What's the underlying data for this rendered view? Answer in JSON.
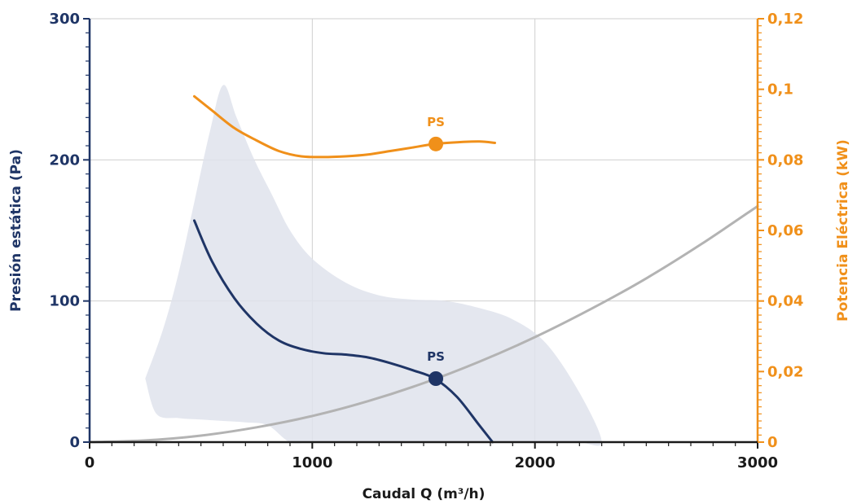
{
  "chart_data": {
    "type": "line",
    "xlabel": "Caudal Q (m³/h)",
    "ylabel": "Presión estática (Pa)",
    "y2label": "Potencia Eléctrica (kW)",
    "xlim": [
      0,
      3000
    ],
    "ylim": [
      0,
      300
    ],
    "y2lim": [
      0,
      0.12
    ],
    "x_ticks": [
      "0",
      "1000",
      "2000",
      "3000"
    ],
    "y_ticks": [
      "0",
      "100",
      "200",
      "300"
    ],
    "y2_ticks": [
      "0",
      "0,02",
      "0,04",
      "0,06",
      "0,08",
      "0,1",
      "0,12"
    ],
    "grid": true,
    "colors": {
      "pressure": "#1f3566",
      "power": "#f0901a",
      "system": "#b3b3b3",
      "envelope": "#dfe3ec"
    },
    "envelope": {
      "x": [
        250,
        330,
        400,
        470,
        540,
        600,
        660,
        740,
        820,
        900,
        1000,
        1150,
        1300,
        1450,
        1600,
        1750,
        1900,
        2050,
        2200,
        2300,
        2200,
        2100,
        2000,
        1800,
        1500,
        1200,
        1000,
        900,
        800,
        700,
        600,
        500,
        400,
        300,
        250
      ],
      "y": [
        45,
        80,
        120,
        170,
        220,
        253,
        230,
        200,
        175,
        150,
        130,
        113,
        104,
        101,
        100,
        95,
        87,
        70,
        35,
        0,
        0,
        0,
        0,
        0,
        0,
        0,
        0,
        0,
        12,
        14,
        15,
        16,
        17,
        20,
        45
      ]
    },
    "series": [
      {
        "name": "PS",
        "axis": "left",
        "x": [
          470,
          550,
          650,
          750,
          850,
          950,
          1050,
          1150,
          1250,
          1350,
          1450,
          1550,
          1650,
          1750,
          1810
        ],
        "y": [
          157,
          128,
          102,
          84,
          72,
          66,
          63,
          62,
          60,
          56,
          51,
          45,
          32,
          12,
          0
        ]
      },
      {
        "name": "PS",
        "axis": "right",
        "x": [
          470,
          550,
          650,
          750,
          850,
          950,
          1050,
          1150,
          1250,
          1350,
          1450,
          1550,
          1650,
          1750,
          1820
        ],
        "y": [
          0.098,
          0.094,
          0.089,
          0.0855,
          0.0825,
          0.081,
          0.0808,
          0.081,
          0.0815,
          0.0825,
          0.0835,
          0.0845,
          0.085,
          0.0852,
          0.0848
        ]
      },
      {
        "name": "",
        "axis": "left",
        "x": [
          0,
          250,
          500,
          750,
          1000,
          1250,
          1500,
          1750,
          2000,
          2250,
          2500,
          2750,
          3000
        ],
        "y": [
          0,
          1.2,
          4.6,
          10.5,
          18.5,
          29,
          41.8,
          57,
          74.4,
          94.2,
          116,
          140.6,
          167.2
        ]
      }
    ],
    "points": [
      {
        "label": "PS",
        "axis": "left",
        "x": 1555,
        "y": 45
      },
      {
        "label": "PS",
        "axis": "right",
        "x": 1555,
        "y": 0.0845
      }
    ]
  }
}
